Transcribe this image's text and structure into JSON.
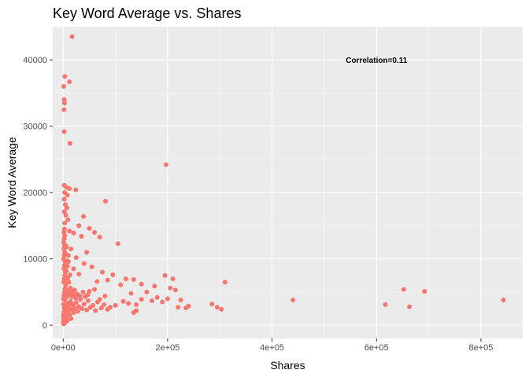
{
  "chart_data": {
    "type": "scatter",
    "title": "Key Word Average vs. Shares",
    "xlabel": "Shares",
    "ylabel": "Key Word Average",
    "xlim": [
      -20000,
      880000
    ],
    "ylim": [
      -2000,
      45000
    ],
    "x_ticks": [
      0,
      200000,
      400000,
      600000,
      800000
    ],
    "x_tick_labels": [
      "0e+00",
      "2e+05",
      "4e+05",
      "6e+05",
      "8e+05"
    ],
    "y_ticks": [
      0,
      10000,
      20000,
      30000,
      40000
    ],
    "y_tick_labels": [
      "0",
      "10000",
      "20000",
      "30000",
      "40000"
    ],
    "grid": true,
    "point_color": "#F8766D",
    "panel_background": "#EBEBEB",
    "grid_color": "#FFFFFF",
    "annotation": {
      "text": "Correlation=0.11",
      "x": 600000,
      "y": 40000
    },
    "points": [
      [
        17000,
        43500
      ],
      [
        3000,
        37500
      ],
      [
        12000,
        36700
      ],
      [
        1000,
        36000
      ],
      [
        2000,
        34000
      ],
      [
        2500,
        33500
      ],
      [
        1500,
        32500
      ],
      [
        2000,
        29200
      ],
      [
        13000,
        27400
      ],
      [
        197000,
        24200
      ],
      [
        2000,
        21100
      ],
      [
        6000,
        20800
      ],
      [
        12000,
        20600
      ],
      [
        24000,
        20400
      ],
      [
        3000,
        20000
      ],
      [
        8000,
        19600
      ],
      [
        2000,
        19000
      ],
      [
        81000,
        18700
      ],
      [
        4000,
        18200
      ],
      [
        7000,
        17700
      ],
      [
        2000,
        17100
      ],
      [
        5000,
        16600
      ],
      [
        39000,
        16400
      ],
      [
        9000,
        15900
      ],
      [
        3000,
        15400
      ],
      [
        30000,
        15000
      ],
      [
        50000,
        14600
      ],
      [
        12000,
        14200
      ],
      [
        20000,
        13900
      ],
      [
        60000,
        14000
      ],
      [
        35000,
        13400
      ],
      [
        70000,
        13300
      ],
      [
        105000,
        12300
      ],
      [
        5000,
        12000
      ],
      [
        15000,
        11500
      ],
      [
        45000,
        11000
      ],
      [
        10000,
        10500
      ],
      [
        25000,
        10200
      ],
      [
        8000,
        9700
      ],
      [
        40000,
        9300
      ],
      [
        55000,
        8800
      ],
      [
        20000,
        8500
      ],
      [
        75000,
        8000
      ],
      [
        30000,
        7700
      ],
      [
        95000,
        7600
      ],
      [
        120000,
        7000
      ],
      [
        85000,
        6800
      ],
      [
        65000,
        6600
      ],
      [
        135000,
        6900
      ],
      [
        150000,
        6200
      ],
      [
        110000,
        6100
      ],
      [
        175000,
        5900
      ],
      [
        195000,
        7500
      ],
      [
        210000,
        7000
      ],
      [
        205000,
        5600
      ],
      [
        215000,
        5300
      ],
      [
        310000,
        6500
      ],
      [
        160000,
        5000
      ],
      [
        130000,
        4800
      ],
      [
        180000,
        4200
      ],
      [
        200000,
        4000
      ],
      [
        150000,
        3900
      ],
      [
        225000,
        3800
      ],
      [
        170000,
        3700
      ],
      [
        190000,
        3500
      ],
      [
        125000,
        3300
      ],
      [
        140000,
        3100
      ],
      [
        220000,
        2700
      ],
      [
        235000,
        2600
      ],
      [
        240000,
        2900
      ],
      [
        285000,
        3200
      ],
      [
        295000,
        2700
      ],
      [
        303000,
        2400
      ],
      [
        140000,
        2200
      ],
      [
        135000,
        1900
      ],
      [
        100000,
        3000
      ],
      [
        90000,
        2700
      ],
      [
        115000,
        3600
      ],
      [
        80000,
        4400
      ],
      [
        70000,
        3900
      ],
      [
        60000,
        5400
      ],
      [
        50000,
        5100
      ],
      [
        440000,
        3800
      ],
      [
        617000,
        3100
      ],
      [
        652000,
        5400
      ],
      [
        663000,
        2800
      ],
      [
        692000,
        5100
      ],
      [
        843000,
        3800
      ],
      [
        300,
        500
      ],
      [
        800,
        200
      ],
      [
        1200,
        1000
      ],
      [
        500,
        1500
      ],
      [
        2000,
        800
      ],
      [
        3000,
        300
      ],
      [
        1500,
        2000
      ],
      [
        2500,
        2500
      ],
      [
        4000,
        1800
      ],
      [
        6000,
        1200
      ],
      [
        8000,
        700
      ],
      [
        10000,
        2200
      ],
      [
        12000,
        1600
      ],
      [
        15000,
        1000
      ],
      [
        5000,
        3000
      ],
      [
        7000,
        2700
      ],
      [
        9000,
        3300
      ],
      [
        11000,
        2900
      ],
      [
        14000,
        3600
      ],
      [
        16000,
        2400
      ],
      [
        18000,
        3100
      ],
      [
        20000,
        1900
      ],
      [
        22000,
        2600
      ],
      [
        25000,
        3400
      ],
      [
        28000,
        2100
      ],
      [
        30000,
        2800
      ],
      [
        33000,
        3900
      ],
      [
        36000,
        2500
      ],
      [
        40000,
        3200
      ],
      [
        45000,
        2300
      ],
      [
        48000,
        3700
      ],
      [
        52000,
        2700
      ],
      [
        57000,
        3000
      ],
      [
        62000,
        2200
      ],
      [
        66000,
        3500
      ],
      [
        73000,
        2600
      ],
      [
        78000,
        3100
      ],
      [
        85000,
        2400
      ],
      [
        500,
        4000
      ],
      [
        1500,
        4500
      ],
      [
        2500,
        5000
      ],
      [
        3500,
        5500
      ],
      [
        4500,
        6000
      ],
      [
        1000,
        6500
      ],
      [
        2000,
        7000
      ],
      [
        3000,
        7500
      ],
      [
        4000,
        8000
      ],
      [
        1500,
        8500
      ],
      [
        2500,
        9000
      ],
      [
        3500,
        9500
      ],
      [
        1000,
        10000
      ],
      [
        2000,
        10500
      ],
      [
        3000,
        11000
      ],
      [
        1500,
        11500
      ],
      [
        2500,
        12000
      ],
      [
        1000,
        12500
      ],
      [
        2000,
        13000
      ],
      [
        3000,
        13500
      ],
      [
        1500,
        14000
      ],
      [
        2500,
        14500
      ],
      [
        6000,
        4200
      ],
      [
        8000,
        4800
      ],
      [
        10000,
        5200
      ],
      [
        12000,
        4600
      ],
      [
        14000,
        5600
      ],
      [
        16000,
        4300
      ],
      [
        18000,
        5000
      ],
      [
        20000,
        4500
      ],
      [
        22000,
        5300
      ],
      [
        24000,
        4100
      ],
      [
        27000,
        4700
      ],
      [
        32000,
        4400
      ],
      [
        38000,
        5000
      ],
      [
        42000,
        4300
      ],
      [
        47000,
        4600
      ],
      [
        5000,
        6200
      ],
      [
        7000,
        6800
      ],
      [
        9000,
        7200
      ],
      [
        11000,
        6500
      ],
      [
        13000,
        7600
      ],
      [
        6000,
        8200
      ],
      [
        8000,
        8900
      ],
      [
        10000,
        9600
      ],
      [
        4000,
        10800
      ],
      [
        6000,
        11800
      ],
      [
        3000,
        3800
      ],
      [
        4000,
        4200
      ],
      [
        1000,
        3200
      ],
      [
        2000,
        2800
      ],
      [
        700,
        1100
      ],
      [
        1800,
        1300
      ]
    ]
  }
}
